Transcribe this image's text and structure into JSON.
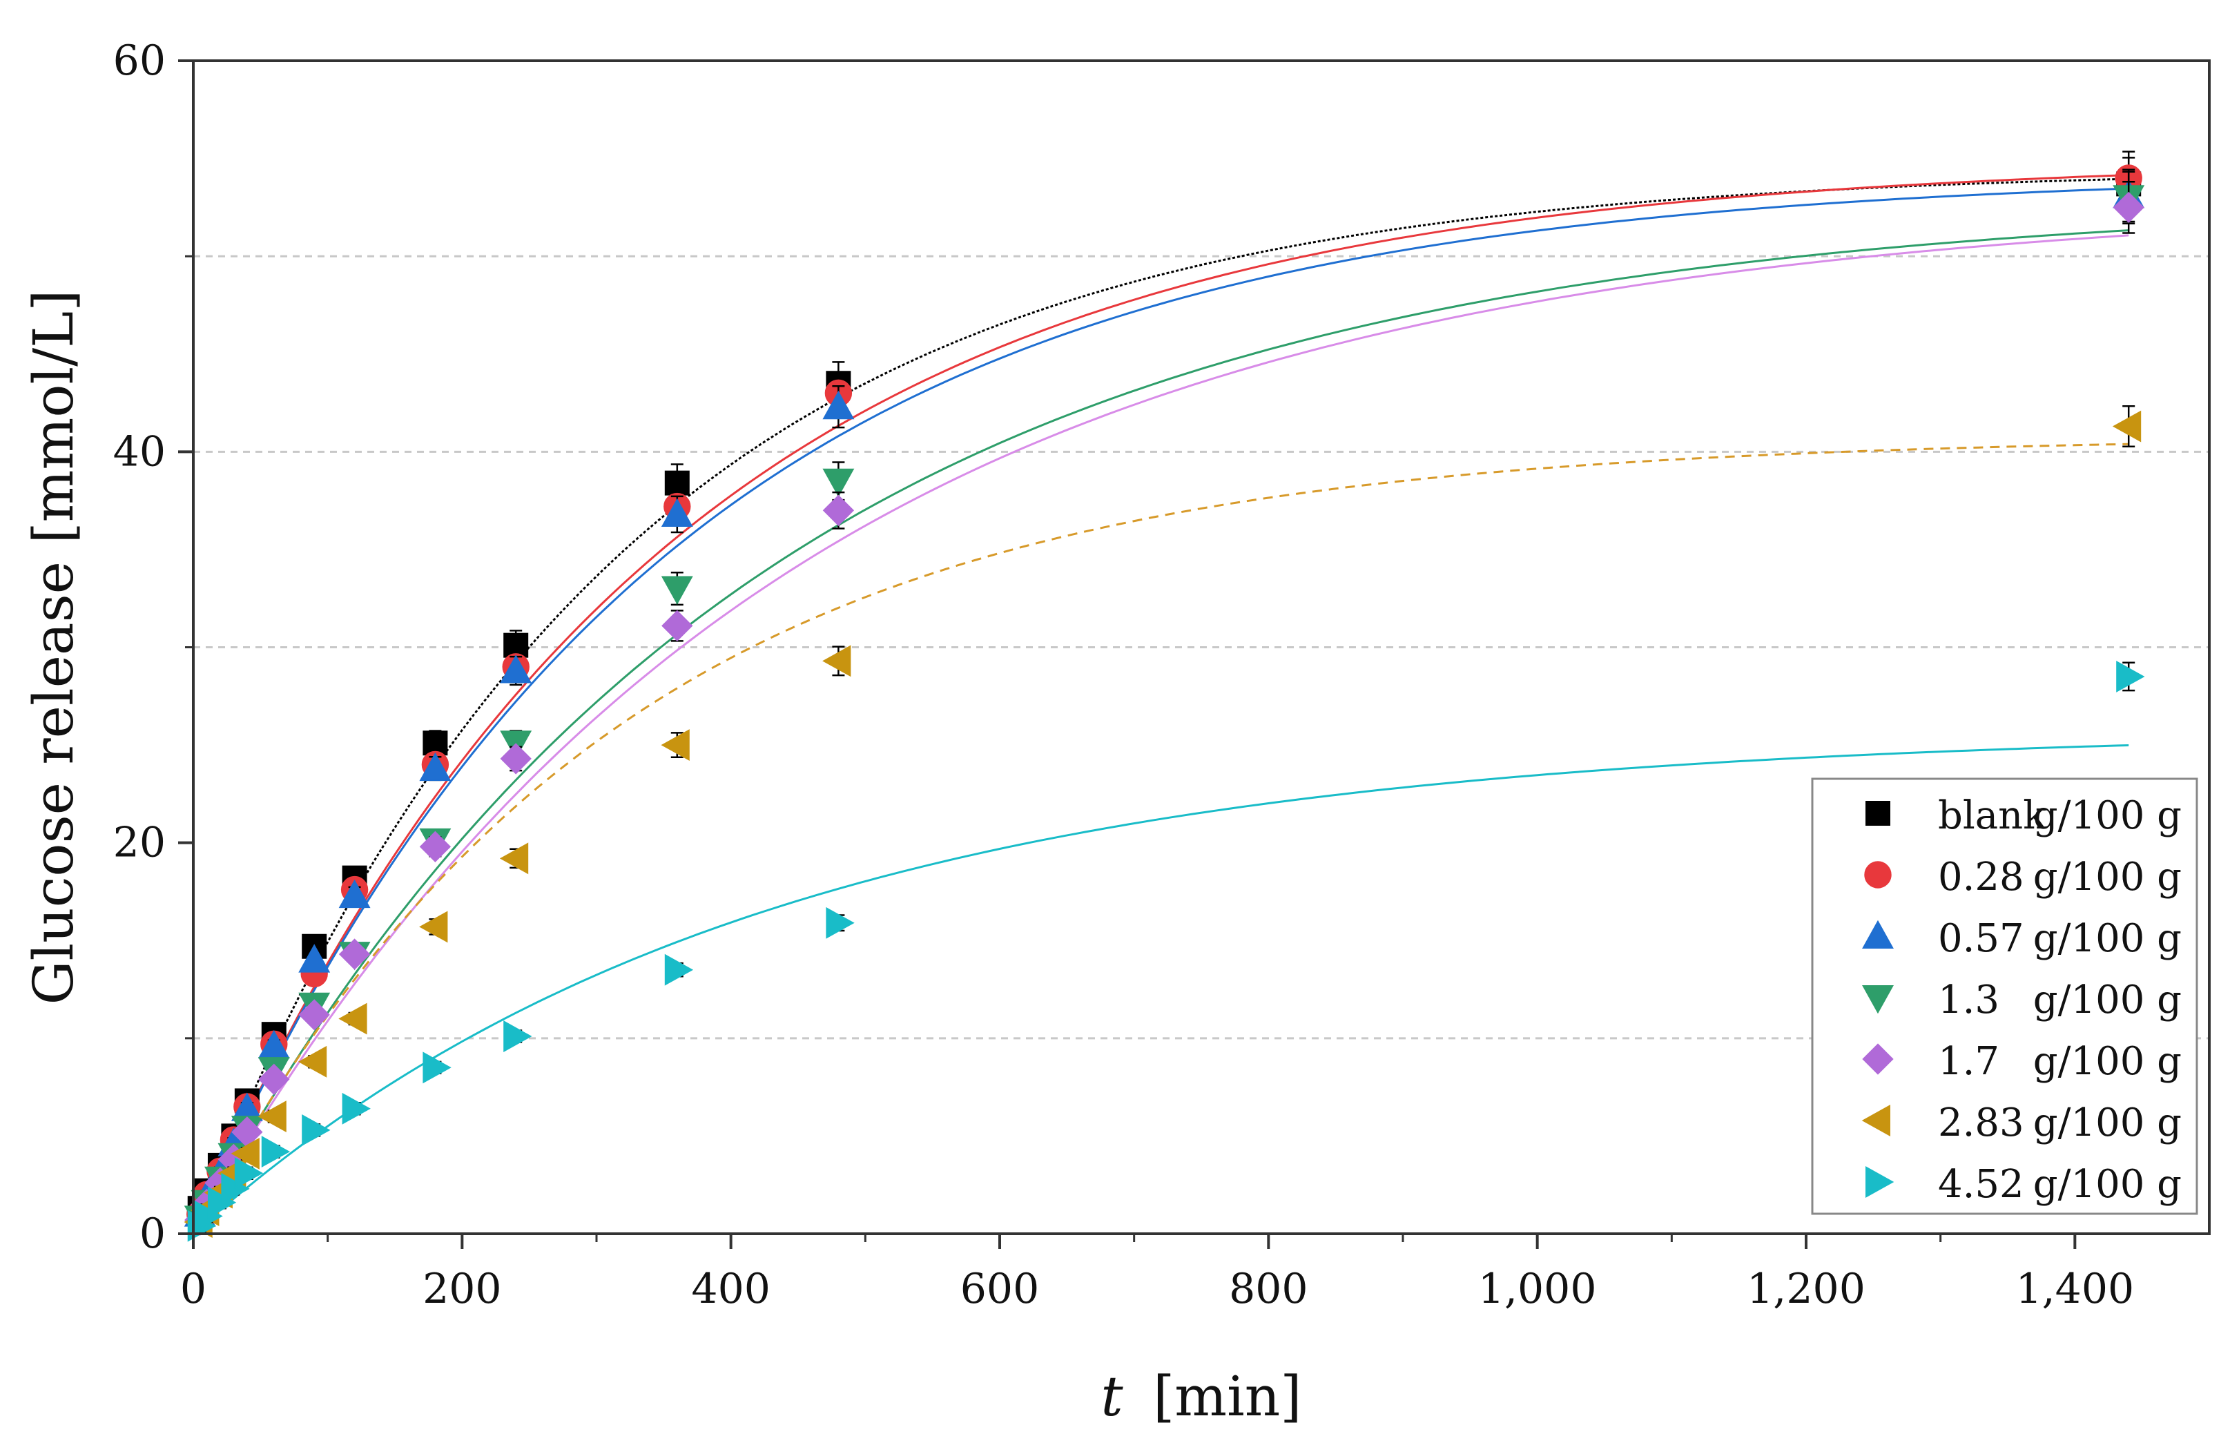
{
  "chart_data": {
    "type": "scatter",
    "title": "",
    "xlabel": "[min]",
    "xlabel_var": "t",
    "ylabel": "Glucose release [mmol/L]",
    "xlim": [
      0,
      1500
    ],
    "ylim": [
      0,
      60
    ],
    "x_ticks": [
      0,
      200,
      400,
      600,
      800,
      1000,
      1200,
      1400
    ],
    "x_tick_labels": [
      "0",
      "200",
      "400",
      "600",
      "800",
      "1,000",
      "1,200",
      "1,400"
    ],
    "y_ticks": [
      0,
      20,
      40,
      60
    ],
    "y_tick_labels": [
      "0",
      "20",
      "40",
      "60"
    ],
    "y_gridlines": [
      10,
      30,
      40,
      50
    ],
    "legend_position": "bottom-right",
    "x": [
      5,
      10,
      20,
      30,
      40,
      60,
      90,
      120,
      180,
      240,
      360,
      480,
      1440
    ],
    "series": [
      {
        "name": "blank",
        "unit": "g/100 g",
        "marker": "square",
        "color": "#000000",
        "line_color": "#000000",
        "dashed": false,
        "values": [
          1.3,
          2.2,
          3.5,
          5.0,
          6.8,
          10.2,
          14.7,
          18.2,
          25.1,
          30.1,
          38.4,
          43.5,
          53.7
        ],
        "fit": {
          "a": 54.5,
          "k": 0.0032
        }
      },
      {
        "name": "0.28",
        "unit": "g/100 g",
        "marker": "circle",
        "color": "#e8383c",
        "line_color": "#e8383c",
        "dashed": false,
        "values": [
          1.0,
          2.0,
          3.2,
          4.8,
          6.5,
          9.7,
          13.3,
          17.6,
          24.0,
          29.0,
          37.2,
          43.0,
          54.0
        ],
        "fit": {
          "a": 55.0,
          "k": 0.0029
        }
      },
      {
        "name": "0.57",
        "unit": "g/100 g",
        "marker": "triangle-up",
        "color": "#1f6fd1",
        "line_color": "#1f6fd1",
        "dashed": false,
        "values": [
          1.0,
          1.9,
          3.1,
          4.6,
          6.4,
          9.6,
          14.0,
          17.3,
          23.8,
          28.8,
          36.8,
          42.3,
          53.1
        ],
        "fit": {
          "a": 54.3,
          "k": 0.0029
        }
      },
      {
        "name": "1.3",
        "unit": "g/100 g",
        "marker": "triangle-down",
        "color": "#2e9e6a",
        "line_color": "#2e9e6a",
        "dashed": false,
        "values": [
          0.8,
          1.6,
          2.8,
          4.0,
          5.4,
          8.4,
          11.7,
          14.3,
          20.1,
          25.1,
          33.0,
          38.5,
          53.0
        ],
        "fit": {
          "a": 53.0,
          "k": 0.0024
        }
      },
      {
        "name": "1.7",
        "unit": "g/100 g",
        "marker": "diamond",
        "color": "#b06ad8",
        "line_color": "#d88ce8",
        "dashed": false,
        "values": [
          0.7,
          1.5,
          2.6,
          3.8,
          5.2,
          7.9,
          11.2,
          14.3,
          19.8,
          24.3,
          31.1,
          37.0,
          52.5
        ],
        "fit": {
          "a": 53.0,
          "k": 0.0023
        }
      },
      {
        "name": "2.83",
        "unit": "g/100 g",
        "marker": "triangle-left",
        "color": "#c89410",
        "line_color": "#d79a2a",
        "dashed": true,
        "values": [
          0.6,
          1.2,
          2.1,
          3.1,
          4.1,
          6.0,
          8.8,
          11.0,
          15.7,
          19.2,
          25.0,
          29.3,
          41.3
        ],
        "fit": {
          "a": 40.8,
          "k": 0.0032
        }
      },
      {
        "name": "4.52",
        "unit": "g/100 g",
        "marker": "triangle-right",
        "color": "#19bcc8",
        "line_color": "#19bcc8",
        "dashed": false,
        "values": [
          0.4,
          0.9,
          1.6,
          2.3,
          3.1,
          4.2,
          5.3,
          6.4,
          8.5,
          10.1,
          13.5,
          15.9,
          28.5
        ],
        "fit": {
          "a": 25.8,
          "k": 0.0024
        }
      }
    ]
  }
}
